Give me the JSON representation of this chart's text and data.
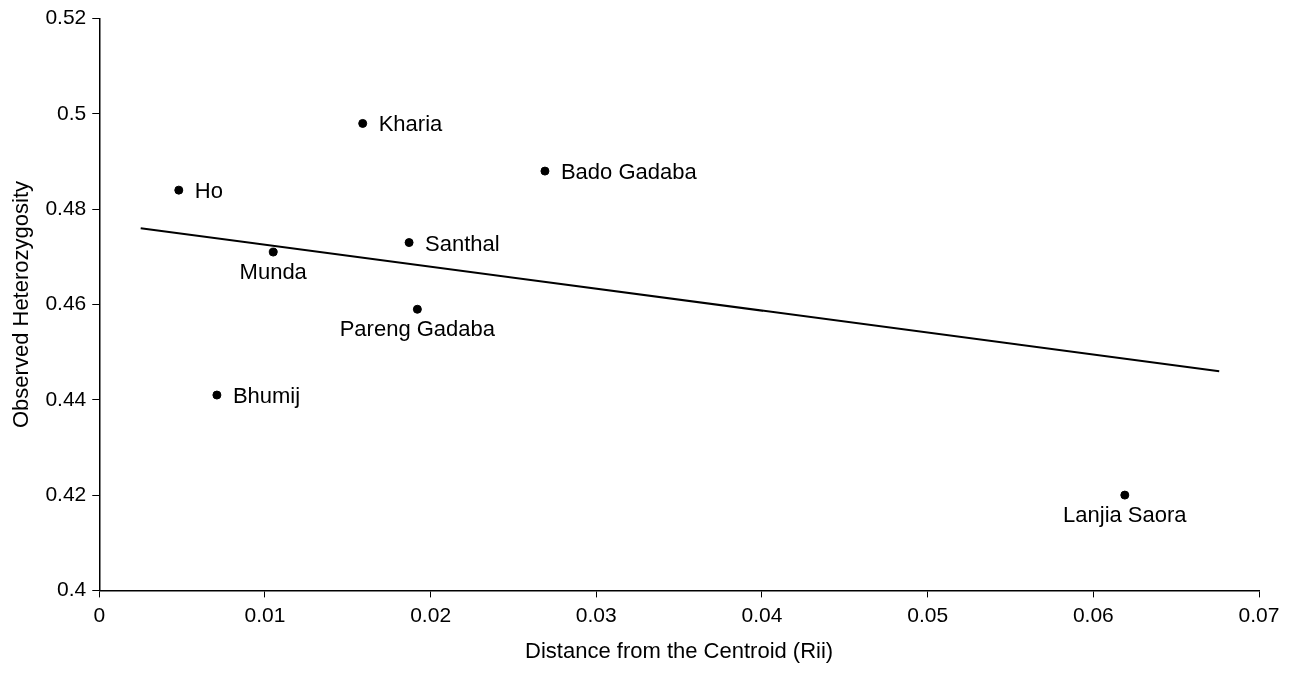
{
  "chart_data": {
    "type": "scatter",
    "xlabel": "Distance from the Centroid (Rii)",
    "ylabel": "Observed Heterozygosity",
    "xlim": [
      0,
      0.07
    ],
    "xticks": [
      0,
      0.01,
      0.02,
      0.03,
      0.04,
      0.05,
      0.06,
      0.07
    ],
    "ylim": [
      0.4,
      0.52
    ],
    "yticks": [
      0.4,
      0.42,
      0.44,
      0.46,
      0.48,
      0.5,
      0.52
    ],
    "grid": false,
    "legend": false,
    "marker": "circle",
    "series": [
      {
        "color": "#000000",
        "x": [
          0.0048,
          0.0159,
          0.0269,
          0.0187,
          0.0105,
          0.0192,
          0.0071,
          0.0619
        ],
        "values": [
          0.484,
          0.498,
          0.488,
          0.473,
          0.471,
          0.459,
          0.441,
          0.42
        ]
      },
      {
        "type": "line",
        "color": "#000000",
        "marker": "none",
        "line_style": "solid",
        "x": [
          0.0025,
          0.0676
        ],
        "values": [
          0.476,
          0.446
        ]
      }
    ],
    "annotations": [
      {
        "text": "Ho",
        "x": 0.0048,
        "y": 0.484
      },
      {
        "text": "Kharia",
        "x": 0.0159,
        "y": 0.498
      },
      {
        "text": "Bado Gadaba",
        "x": 0.0269,
        "y": 0.488
      },
      {
        "text": "Santhal",
        "x": 0.0187,
        "y": 0.473
      },
      {
        "text": "Munda",
        "x": 0.0105,
        "y": 0.471
      },
      {
        "text": "Pareng Gadaba",
        "x": 0.0192,
        "y": 0.459
      },
      {
        "text": "Bhumij",
        "x": 0.0071,
        "y": 0.441
      },
      {
        "text": "Lanjia Saora",
        "x": 0.0619,
        "y": 0.42
      }
    ]
  }
}
